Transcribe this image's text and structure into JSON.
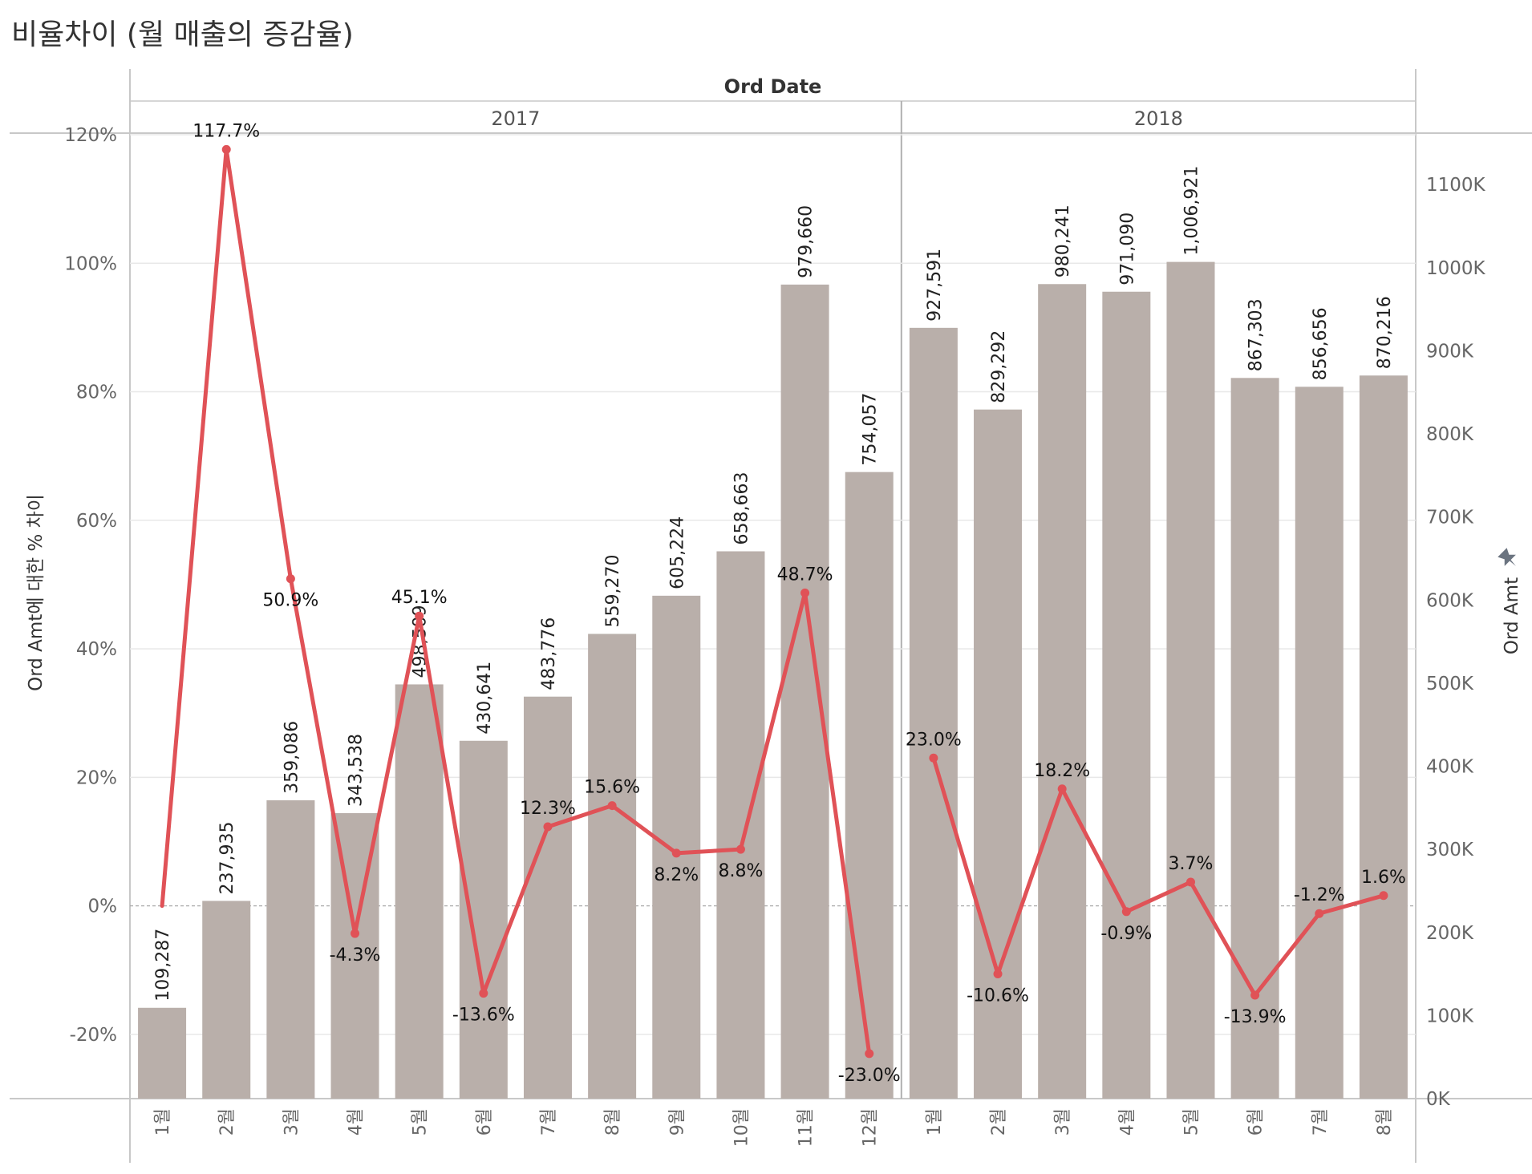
{
  "title": "비율차이 (월 매출의 증감율)",
  "colors": {
    "bar": "#b9afaa",
    "line": "#e05257",
    "grid": "#e8e8e8",
    "zero": "#aaaaaa",
    "divider": "#c8c8c8"
  },
  "header": {
    "title": "Ord Date",
    "years": [
      "2017",
      "2018"
    ]
  },
  "chart_data": {
    "type": "bar",
    "title": "비율차이 (월 매출의 증감율)",
    "categories": [
      "1월",
      "2월",
      "3월",
      "4월",
      "5월",
      "6월",
      "7월",
      "8월",
      "9월",
      "10월",
      "11월",
      "12월",
      "1월",
      "2월",
      "3월",
      "4월",
      "5월",
      "6월",
      "7월",
      "8월"
    ],
    "years": [
      "2017",
      "2017",
      "2017",
      "2017",
      "2017",
      "2017",
      "2017",
      "2017",
      "2017",
      "2017",
      "2017",
      "2017",
      "2018",
      "2018",
      "2018",
      "2018",
      "2018",
      "2018",
      "2018",
      "2018"
    ],
    "series": [
      {
        "name": "Ord Amt",
        "axis": "right",
        "type": "bar",
        "values": [
          109287,
          237935,
          359086,
          343538,
          498509,
          430641,
          483776,
          559270,
          605224,
          658663,
          979660,
          754057,
          927591,
          829292,
          980241,
          971090,
          1006921,
          867303,
          856656,
          870216
        ],
        "labels": [
          "109,287",
          "237,935",
          "359,086",
          "343,538",
          "498,509",
          "430,641",
          "483,776",
          "559,270",
          "605,224",
          "658,663",
          "979,660",
          "754,057",
          "927,591",
          "829,292",
          "980,241",
          "971,090",
          "1,006,921",
          "867,303",
          "856,656",
          "870,216"
        ]
      },
      {
        "name": "Ord Amt에 대한 % 차이",
        "axis": "left",
        "type": "line",
        "values": [
          null,
          117.7,
          50.9,
          -4.3,
          45.1,
          -13.6,
          12.3,
          15.6,
          8.2,
          8.8,
          48.7,
          -23.0,
          23.0,
          -10.6,
          18.2,
          -0.9,
          3.7,
          -13.9,
          -1.2,
          1.6
        ],
        "labels": [
          "",
          "117.7%",
          "50.9%",
          "-4.3%",
          "45.1%",
          "-13.6%",
          "12.3%",
          "15.6%",
          "8.2%",
          "8.8%",
          "48.7%",
          "-23.0%",
          "23.0%",
          "-10.6%",
          "18.2%",
          "-0.9%",
          "3.7%",
          "-13.9%",
          "-1.2%",
          "1.6%"
        ]
      }
    ],
    "ylabel_left": "Ord Amt에 대한 % 차이",
    "ylabel_right": "Ord Amt",
    "ylim_left": [
      -30,
      120
    ],
    "ylim_right": [
      0,
      1160000
    ],
    "yticks_left": [
      "120%",
      "100%",
      "80%",
      "60%",
      "40%",
      "20%",
      "0%",
      "-20%"
    ],
    "yticks_right": [
      "1100K",
      "1000K",
      "900K",
      "800K",
      "700K",
      "600K",
      "500K",
      "400K",
      "300K",
      "200K",
      "100K",
      "0K"
    ],
    "grid": true
  }
}
